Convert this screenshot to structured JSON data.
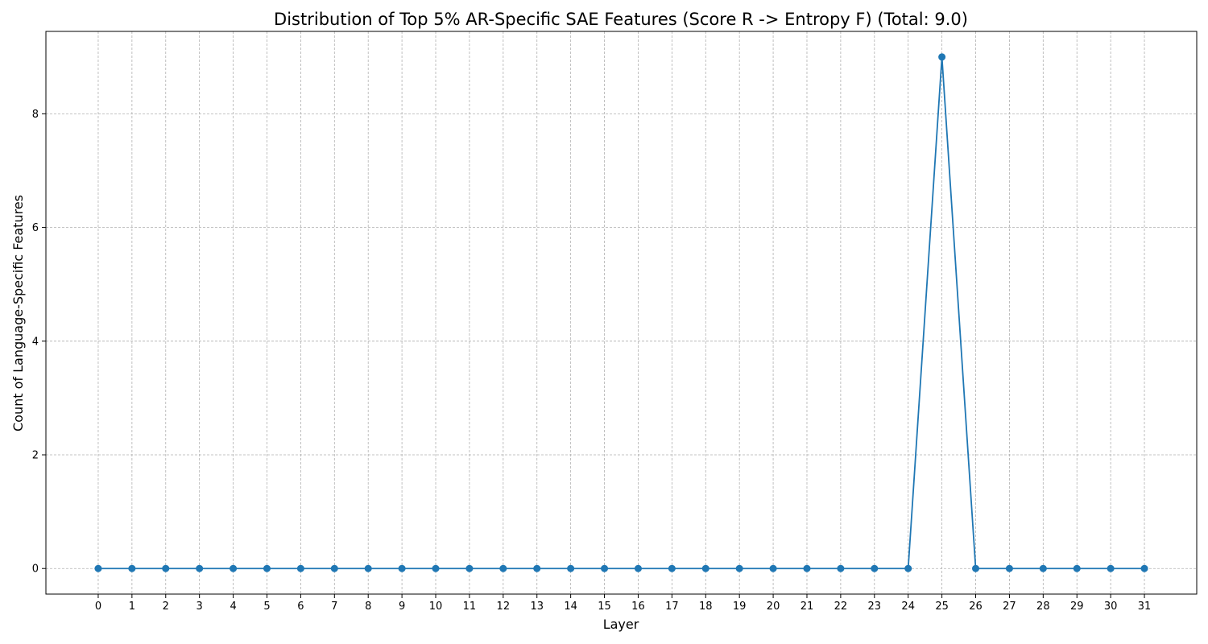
{
  "chart_data": {
    "type": "line",
    "title": "Distribution of Top 5% AR-Specific SAE Features (Score R -> Entropy F) (Total: 9.0)",
    "xlabel": "Layer",
    "ylabel": "Count of Language-Specific Features",
    "x": [
      0,
      1,
      2,
      3,
      4,
      5,
      6,
      7,
      8,
      9,
      10,
      11,
      12,
      13,
      14,
      15,
      16,
      17,
      18,
      19,
      20,
      21,
      22,
      23,
      24,
      25,
      26,
      27,
      28,
      29,
      30,
      31
    ],
    "series": [
      {
        "values": [
          0,
          0,
          0,
          0,
          0,
          0,
          0,
          0,
          0,
          0,
          0,
          0,
          0,
          0,
          0,
          0,
          0,
          0,
          0,
          0,
          0,
          0,
          0,
          0,
          0,
          9,
          0,
          0,
          0,
          0,
          0,
          0
        ],
        "color": "#1f77b4",
        "marker": "circle"
      }
    ],
    "xticks": [
      "0",
      "1",
      "2",
      "3",
      "4",
      "5",
      "6",
      "7",
      "8",
      "9",
      "10",
      "11",
      "12",
      "13",
      "14",
      "15",
      "16",
      "17",
      "18",
      "19",
      "20",
      "21",
      "22",
      "23",
      "24",
      "25",
      "26",
      "27",
      "28",
      "29",
      "30",
      "31"
    ],
    "yticks": [
      0,
      2,
      4,
      6,
      8
    ],
    "xlim": [
      -1.55,
      32.55
    ],
    "ylim": [
      -0.45,
      9.45
    ],
    "grid": true
  }
}
